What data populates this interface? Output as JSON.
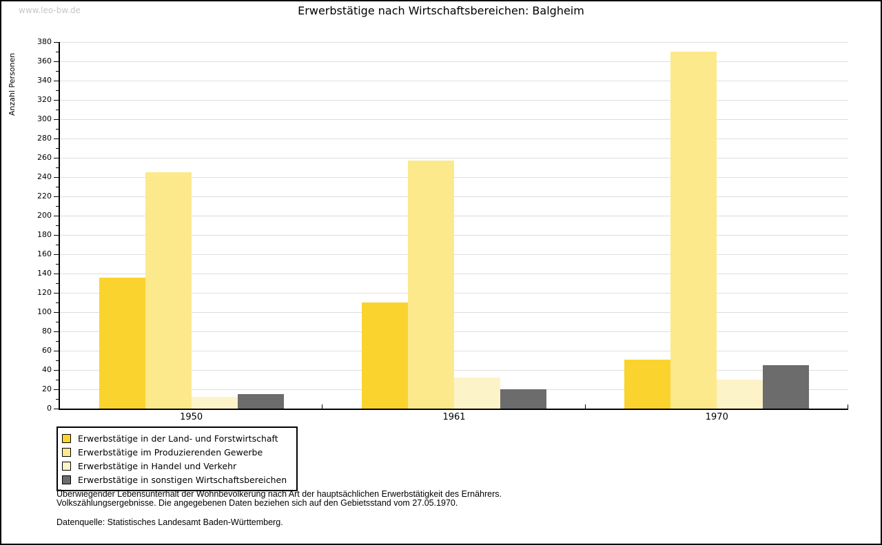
{
  "watermark": "www.leo-bw.de",
  "title": "Erwerbstätige nach Wirtschaftsbereichen: Balgheim",
  "chart_data": {
    "type": "bar",
    "title": "Erwerbstätige nach Wirtschaftsbereichen: Balgheim",
    "categories": [
      "1950",
      "1961",
      "1970"
    ],
    "series": [
      {
        "name": "Erwerbstätige in der Land- und Forstwirtschaft",
        "color": "#fbd32f",
        "values": [
          136,
          110,
          51
        ]
      },
      {
        "name": "Erwerbstätige im Produzierenden Gewerbe",
        "color": "#fce98c",
        "values": [
          245,
          257,
          370
        ]
      },
      {
        "name": "Erwerbstätige in Handel und Verkehr",
        "color": "#fcf3c9",
        "values": [
          12,
          32,
          30
        ]
      },
      {
        "name": "Erwerbstätige in sonstigen Wirtschaftsbereichen",
        "color": "#6c6c6c",
        "values": [
          15,
          20,
          45
        ]
      }
    ],
    "xlabel": "",
    "ylabel": "Anzahl Personen",
    "ylim": [
      0,
      380
    ],
    "ytick_major": 20,
    "ytick_minor": 10,
    "grid": "horizontal-major",
    "legend_position": "bottom-left",
    "gridline_color": "#dedede"
  },
  "footer": {
    "note_line1": "Überwiegender Lebensunterhalt der Wohnbevölkerung nach Art der hauptsächlichen Erwerbstätigkeit des Ernährers.",
    "note_line2": "Volkszählungsergebnisse. Die angegebenen Daten beziehen sich auf den Gebietsstand vom 27.05.1970.",
    "source": "Datenquelle: Statistisches Landesamt Baden-Württemberg."
  }
}
